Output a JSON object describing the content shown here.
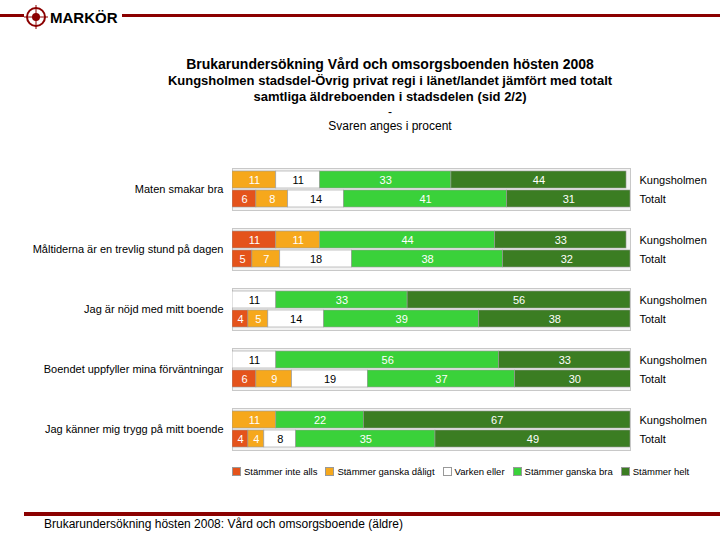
{
  "chart_data": {
    "type": "bar",
    "orientation": "horizontal",
    "stacked": true,
    "data_labels": true,
    "tick_labels": "y",
    "legend": "bottom",
    "header": "MARKÖR",
    "title": "Brukarundersökning Vård och omsorgsboenden hösten 2008",
    "subtitle": [
      "Kungsholmen stadsdel-Övrig privat regi i länet/landet jämfört med totalt",
      "samtliga äldreboenden i stadsdelen (sid 2/2)"
    ],
    "annotations": [
      "-",
      "Svaren anges i procent"
    ],
    "footer": "Brukarundersökning hösten 2008: Vård och omsorgsboende (äldre)",
    "categories": [
      "Maten smakar bra",
      "Måltiderna är en trevlig stund på dagen",
      "Jag är nöjd med mitt boende",
      "Boendet uppfyller mina förväntningar",
      "Jag känner mig trygg på mitt boende"
    ],
    "groups": [
      "Kungsholmen",
      "Totalt"
    ],
    "xlim": [
      0,
      100
    ],
    "series": [
      {
        "name": "Stämmer inte alls",
        "color": "#e4531b",
        "values": [
          [
            0,
            6
          ],
          [
            11,
            5
          ],
          [
            0,
            4
          ],
          [
            0,
            6
          ],
          [
            0,
            4
          ]
        ]
      },
      {
        "name": "Stämmer ganska dåligt",
        "color": "#f6a81c",
        "values": [
          [
            11,
            8
          ],
          [
            11,
            7
          ],
          [
            0,
            5
          ],
          [
            0,
            9
          ],
          [
            11,
            4
          ]
        ]
      },
      {
        "name": "Varken eller",
        "color": "#ffffff",
        "values": [
          [
            11,
            14
          ],
          [
            0,
            18
          ],
          [
            11,
            14
          ],
          [
            11,
            19
          ],
          [
            0,
            8
          ]
        ]
      },
      {
        "name": "Stämmer ganska bra",
        "color": "#3ad13a",
        "values": [
          [
            33,
            41
          ],
          [
            44,
            38
          ],
          [
            33,
            39
          ],
          [
            56,
            37
          ],
          [
            22,
            35
          ]
        ]
      },
      {
        "name": "Stämmer helt",
        "color": "#3b7d22",
        "values": [
          [
            44,
            31
          ],
          [
            33,
            32
          ],
          [
            56,
            38
          ],
          [
            33,
            30
          ],
          [
            67,
            49
          ]
        ]
      }
    ]
  }
}
